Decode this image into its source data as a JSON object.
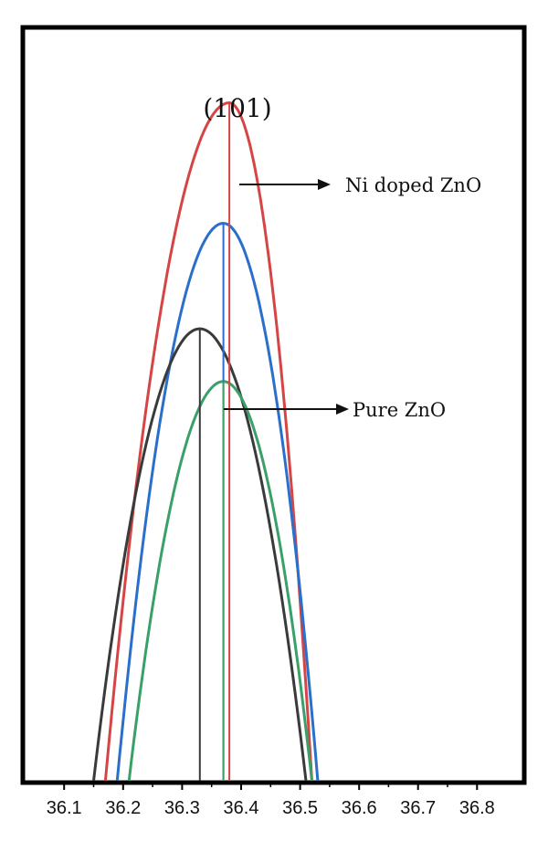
{
  "chart_data": {
    "type": "line",
    "title": "",
    "xlabel": "",
    "ylabel": "",
    "xlim": [
      36.03,
      36.88
    ],
    "ylim": [
      0,
      1.0
    ],
    "x_ticks": [
      "36.1",
      "36.2",
      "36.3",
      "36.4",
      "36.5",
      "36.6",
      "36.7",
      "36.8"
    ],
    "grid": false,
    "legend": "none",
    "series": [
      {
        "color": "#d64545",
        "peak_x": 36.38,
        "peak_y": 0.9,
        "x_start": 36.17,
        "x_end": 36.52
      },
      {
        "color": "#2a6fc9",
        "peak_x": 36.37,
        "peak_y": 0.74,
        "x_start": 36.19,
        "x_end": 36.53
      },
      {
        "color": "#3a3a3a",
        "peak_x": 36.33,
        "peak_y": 0.6,
        "x_start": 36.15,
        "x_end": 36.51
      },
      {
        "color": "#3aa06a",
        "peak_x": 36.37,
        "peak_y": 0.53,
        "x_start": 36.21,
        "x_end": 36.52
      }
    ],
    "annotations": {
      "peak_label": "(101)",
      "ni_label": "Ni doped ZnO",
      "pure_label": "Pure ZnO"
    }
  }
}
